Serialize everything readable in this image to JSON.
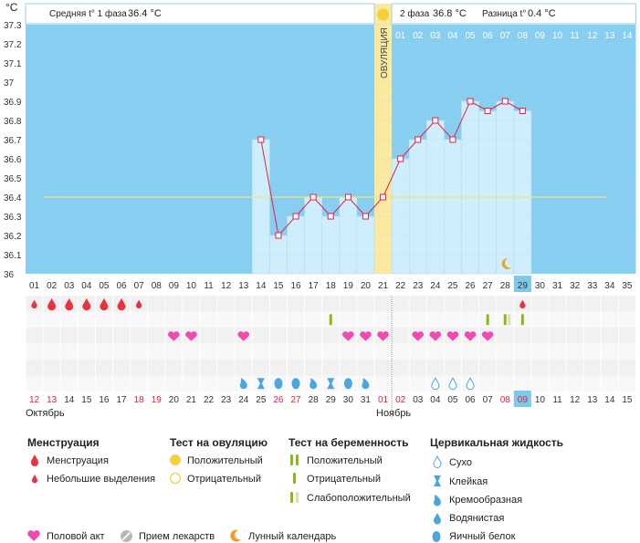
{
  "header": {
    "unit": "°C",
    "phase1_label": "Средняя t° 1 фаза",
    "phase1_value": "36.4 °C",
    "phase2_label": "2 фаза",
    "phase2_value": "36.8 °C",
    "diff_label": "Разница t°",
    "diff_value": "0.4 °C",
    "ovulation_label": "ОВУЛЯЦИЯ"
  },
  "chart_data": {
    "type": "line",
    "cycle_days": [
      "01",
      "02",
      "03",
      "04",
      "05",
      "06",
      "07",
      "08",
      "09",
      "10",
      "11",
      "12",
      "13",
      "14",
      "15",
      "16",
      "17",
      "18",
      "19",
      "20",
      "21",
      "22",
      "23",
      "24",
      "25",
      "26",
      "27",
      "28",
      "29",
      "30",
      "31",
      "32",
      "33",
      "34",
      "35"
    ],
    "y_ticks": [
      "37.3",
      "37.2",
      "37.1",
      "37",
      "36.9",
      "36.8",
      "36.7",
      "36.6",
      "36.5",
      "36.4",
      "36.3",
      "36.2",
      "36.1",
      "36"
    ],
    "ylim": [
      36,
      37.3
    ],
    "temperatures": [
      {
        "day": 14,
        "value": 36.7
      },
      {
        "day": 15,
        "value": 36.2
      },
      {
        "day": 16,
        "value": 36.3
      },
      {
        "day": 17,
        "value": 36.4
      },
      {
        "day": 18,
        "value": 36.3
      },
      {
        "day": 19,
        "value": 36.4
      },
      {
        "day": 20,
        "value": 36.3
      },
      {
        "day": 21,
        "value": 36.4
      },
      {
        "day": 22,
        "value": 36.6
      },
      {
        "day": 23,
        "value": 36.7
      },
      {
        "day": 24,
        "value": 36.8
      },
      {
        "day": 25,
        "value": 36.7
      },
      {
        "day": 26,
        "value": 36.9
      },
      {
        "day": 27,
        "value": 36.85
      },
      {
        "day": 28,
        "value": 36.9
      },
      {
        "day": 29,
        "value": 36.85
      }
    ],
    "coverline": 36.4,
    "ovulation_day": 21,
    "today_day": 29,
    "phase2_days": [
      "01",
      "02",
      "03",
      "04",
      "05",
      "06",
      "07",
      "08",
      "09",
      "10",
      "11",
      "12",
      "13",
      "14"
    ],
    "moon_day": 28,
    "colors": {
      "sky": "#87cef0",
      "bar": "#cfeefb",
      "line": "#e0204e",
      "coverline": "#e8e87a",
      "ovulation": "#fbe9a0",
      "today": "#7ec8ea"
    }
  },
  "tracks": {
    "menstruation": [
      {
        "day": 1,
        "size": "small"
      },
      {
        "day": 2,
        "size": "large"
      },
      {
        "day": 3,
        "size": "large"
      },
      {
        "day": 4,
        "size": "large"
      },
      {
        "day": 5,
        "size": "large"
      },
      {
        "day": 6,
        "size": "large"
      },
      {
        "day": 7,
        "size": "small"
      },
      {
        "day": 29,
        "size": "small"
      }
    ],
    "pregnancy_test": [
      {
        "day": 18,
        "kind": "negative"
      },
      {
        "day": 27,
        "kind": "negative"
      },
      {
        "day": 28,
        "kind": "faint"
      },
      {
        "day": 29,
        "kind": "negative"
      }
    ],
    "intercourse_days": [
      9,
      10,
      13,
      19,
      20,
      21,
      23,
      24,
      25,
      26,
      27
    ],
    "cervical_fluid": [
      {
        "day": 13,
        "kind": "creamy"
      },
      {
        "day": 14,
        "kind": "sticky"
      },
      {
        "day": 15,
        "kind": "eggwhite"
      },
      {
        "day": 16,
        "kind": "eggwhite"
      },
      {
        "day": 17,
        "kind": "creamy"
      },
      {
        "day": 18,
        "kind": "sticky"
      },
      {
        "day": 19,
        "kind": "eggwhite"
      },
      {
        "day": 20,
        "kind": "creamy"
      },
      {
        "day": 24,
        "kind": "dry"
      },
      {
        "day": 25,
        "kind": "dry"
      },
      {
        "day": 26,
        "kind": "dry"
      }
    ]
  },
  "calendar": {
    "dates": [
      "12",
      "13",
      "14",
      "15",
      "16",
      "17",
      "18",
      "19",
      "20",
      "21",
      "22",
      "23",
      "24",
      "25",
      "26",
      "27",
      "28",
      "29",
      "30",
      "31",
      "01",
      "02",
      "03",
      "04",
      "05",
      "06",
      "07",
      "08",
      "09",
      "10",
      "11",
      "12",
      "13",
      "14",
      "15"
    ],
    "red_dates_index": [
      0,
      1,
      6,
      7,
      14,
      15,
      20,
      21,
      27,
      28
    ],
    "today_index": 28,
    "month1": "Октябрь",
    "month2": "Ноябрь"
  },
  "legend": {
    "menstruation_title": "Менструация",
    "menstruation_items": [
      "Менструация",
      "Небольшие выделения"
    ],
    "ovulation_title": "Тест на овуляцию",
    "ovulation_items": [
      "Положительный",
      "Отрицательный"
    ],
    "pregnancy_title": "Тест на беременность",
    "pregnancy_items": [
      "Положительный",
      "Отрицательный",
      "Слабоположительный"
    ],
    "fluid_title": "Цервикальная жидкость",
    "fluid_items": [
      "Сухо",
      "Клейкая",
      "Кремообразная",
      "Водянистая",
      "Яичный белок"
    ],
    "other_items": [
      "Половой акт",
      "Прием лекарств",
      "Лунный календарь"
    ]
  }
}
